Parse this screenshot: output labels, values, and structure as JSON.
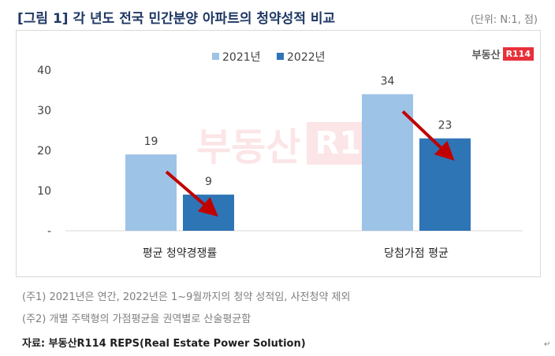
{
  "header": {
    "title": "[그림 1] 각 년도 전국 민간분양 아파트의 청약성적 비교",
    "unit": "(단위: N:1, 점)"
  },
  "logo": {
    "text": "부동산",
    "box": "R114"
  },
  "watermark": {
    "text": "부동산",
    "box": "R114"
  },
  "notes": [
    "(주1) 2021년은 연간, 2022년은 1~9월까지의 청약 성적임, 사전청약 제외",
    "(주2) 개별 주택형의 가점평균을 권역별로 산술평균함"
  ],
  "source": "자료: 부동산R114 REPS(Real Estate Power Solution)",
  "chart_data": {
    "type": "bar",
    "categories": [
      "평균 청약경쟁률",
      "당첨가점 평균"
    ],
    "series": [
      {
        "name": "2021년",
        "values": [
          19,
          34
        ],
        "color": "#9dc3e6"
      },
      {
        "name": "2022년",
        "values": [
          9,
          23
        ],
        "color": "#2e75b6"
      }
    ],
    "ylim": [
      0,
      40
    ],
    "yticks": [
      "-",
      "10",
      "20",
      "30",
      "40"
    ],
    "legend_position": "top-center",
    "grid": false,
    "annotations": "red arrows pointing from 2021 bar to 2022 bar in each category"
  },
  "colors": {
    "title": "#1f3864",
    "arrow": "#c00000"
  }
}
